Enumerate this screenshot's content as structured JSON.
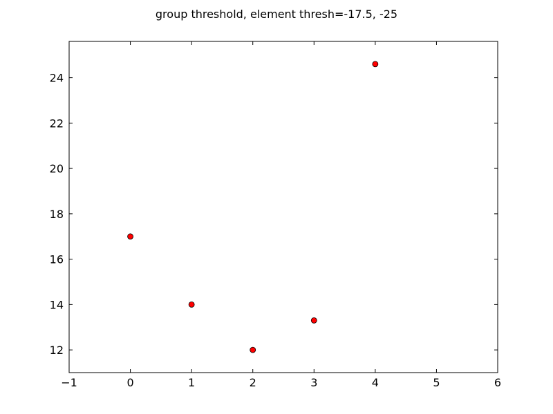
{
  "chart_data": {
    "type": "scatter",
    "title": "group threshold, element thresh=-17.5, -25",
    "xlabel": "",
    "ylabel": "",
    "xlim": [
      -1,
      6
    ],
    "ylim": [
      11,
      25.6
    ],
    "xticks": [
      -1,
      0,
      1,
      2,
      3,
      4,
      5,
      6
    ],
    "yticks": [
      12,
      14,
      16,
      18,
      20,
      22,
      24
    ],
    "xtick_labels": [
      "−1",
      "0",
      "1",
      "2",
      "3",
      "4",
      "5",
      "6"
    ],
    "ytick_labels": [
      "12",
      "14",
      "16",
      "18",
      "20",
      "22",
      "24"
    ],
    "grid": false,
    "series": [
      {
        "marker_color": "#ff0000",
        "marker_edge": "#000000",
        "x": [
          0,
          1,
          2,
          3,
          4
        ],
        "y": [
          17.0,
          14.0,
          12.0,
          13.3,
          24.6
        ]
      }
    ]
  }
}
